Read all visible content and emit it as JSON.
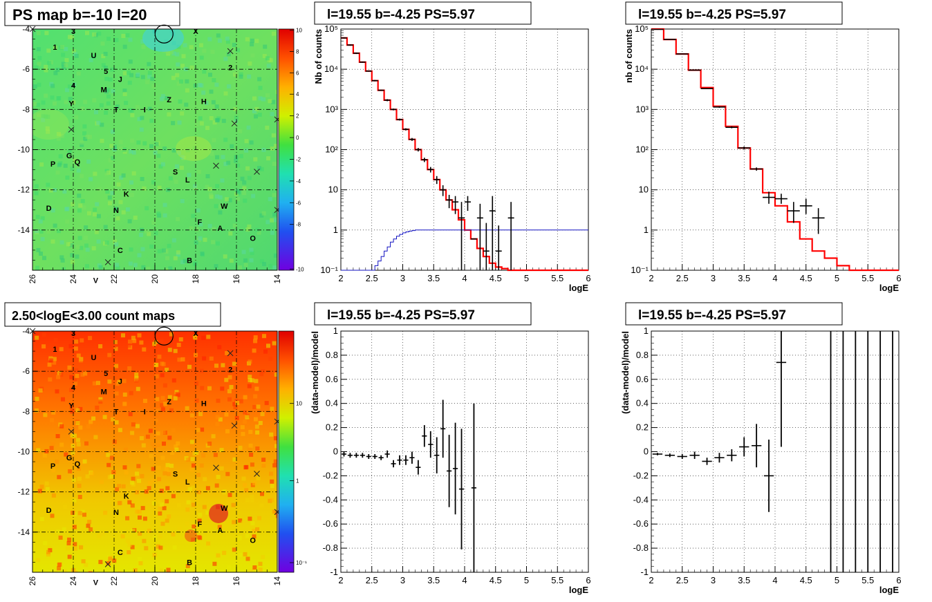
{
  "panels": {
    "ps_map": {
      "title": "PS map b=-10 l=20",
      "x_ticks": [
        "26",
        "24",
        "22",
        "20",
        "18",
        "16",
        "14"
      ],
      "y_ticks": [
        "-4",
        "-6",
        "-8",
        "-10",
        "-12",
        "-14"
      ],
      "colorbar_ticks": [
        "10",
        "8",
        "6",
        "4",
        "2",
        "0",
        "-2",
        "-4",
        "-6",
        "-8",
        "-10"
      ],
      "colors": {
        "high": "#f02000",
        "mid": "#44e040",
        "low": "#7000e0",
        "bg": "#5fe070"
      }
    },
    "count_map": {
      "title": "2.50<logE<3.00 count maps",
      "x_ticks": [
        "26",
        "24",
        "22",
        "20",
        "18",
        "16",
        "14"
      ],
      "y_ticks": [
        "-4",
        "-6",
        "-8",
        "-10",
        "-12",
        "-14"
      ],
      "colorbar_ticks": [
        "10",
        "1",
        "10⁻¹"
      ],
      "colors": {
        "top": "#ff2a00",
        "bottom": "#e8e800"
      }
    },
    "spectrum_left": {
      "title": "l=19.55 b=-4.25 PS=5.97",
      "xlabel": "logE",
      "ylabel": "Nb of counts",
      "x_ticks": [
        "2",
        "2.5",
        "3",
        "3.5",
        "4",
        "4.5",
        "5",
        "5.5",
        "6"
      ],
      "y_ticks": [
        "10⁻¹",
        "1",
        "10",
        "10²",
        "10³",
        "10⁴",
        "10⁵"
      ]
    },
    "spectrum_right": {
      "title": "l=19.55 b=-4.25 PS=5.97",
      "xlabel": "logE",
      "ylabel": "nb of counts",
      "x_ticks": [
        "2",
        "2.5",
        "3",
        "3.5",
        "4",
        "4.5",
        "5",
        "5.5",
        "6"
      ],
      "y_ticks": [
        "10⁻¹",
        "1",
        "10",
        "10²",
        "10³",
        "10⁴",
        "10⁵"
      ]
    },
    "residual_left": {
      "title": "l=19.55 b=-4.25 PS=5.97",
      "xlabel": "logE",
      "ylabel": "(data-model)/model",
      "x_ticks": [
        "2",
        "2.5",
        "3",
        "3.5",
        "4",
        "4.5",
        "5",
        "5.5",
        "6"
      ],
      "y_ticks": [
        "-1",
        "-0.8",
        "-0.6",
        "-0.4",
        "-0.2",
        "0",
        "0.2",
        "0.4",
        "0.6",
        "0.8",
        "1"
      ]
    },
    "residual_right": {
      "title": "l=19.55 b=-4.25 PS=5.97",
      "xlabel": "logE",
      "ylabel": "(data-model)/model",
      "x_ticks": [
        "2",
        "2.5",
        "3",
        "3.5",
        "4",
        "4.5",
        "5",
        "5.5",
        "6"
      ],
      "y_ticks": [
        "-1",
        "-0.8",
        "-0.6",
        "-0.4",
        "-0.2",
        "0",
        "0.2",
        "0.4",
        "0.6",
        "0.8",
        "1"
      ]
    }
  },
  "map_labels": [
    {
      "text": "1",
      "l": 24.9,
      "b": -4.9
    },
    {
      "text": "3",
      "l": 24.0,
      "b": -4.1
    },
    {
      "text": "U",
      "l": 23.0,
      "b": -5.3
    },
    {
      "text": "X",
      "l": 18.0,
      "b": -4.1
    },
    {
      "text": "2",
      "l": 16.3,
      "b": -5.9
    },
    {
      "text": "5",
      "l": 22.4,
      "b": -6.1
    },
    {
      "text": "J",
      "l": 21.7,
      "b": -6.5
    },
    {
      "text": "4",
      "l": 24.0,
      "b": -6.8
    },
    {
      "text": "M",
      "l": 22.5,
      "b": -7.0
    },
    {
      "text": "Z",
      "l": 19.3,
      "b": -7.5
    },
    {
      "text": "H",
      "l": 17.6,
      "b": -7.6
    },
    {
      "text": "Y",
      "l": 24.1,
      "b": -7.7
    },
    {
      "text": "T",
      "l": 21.9,
      "b": -8.0
    },
    {
      "text": "I",
      "l": 20.5,
      "b": -8.0
    },
    {
      "text": "G",
      "l": 24.2,
      "b": -10.3
    },
    {
      "text": "P",
      "l": 25.0,
      "b": -10.7
    },
    {
      "text": "Q",
      "l": 23.8,
      "b": -10.6
    },
    {
      "text": "S",
      "l": 19.0,
      "b": -11.1
    },
    {
      "text": "L",
      "l": 18.4,
      "b": -11.5
    },
    {
      "text": "K",
      "l": 21.4,
      "b": -12.2
    },
    {
      "text": "W",
      "l": 16.6,
      "b": -12.8
    },
    {
      "text": "D",
      "l": 25.2,
      "b": -12.9
    },
    {
      "text": "N",
      "l": 21.9,
      "b": -13.0
    },
    {
      "text": "F",
      "l": 17.8,
      "b": -13.6
    },
    {
      "text": "A",
      "l": 16.8,
      "b": -13.9
    },
    {
      "text": "O",
      "l": 15.2,
      "b": -14.4
    },
    {
      "text": "C",
      "l": 21.7,
      "b": -15.0
    },
    {
      "text": "B",
      "l": 18.3,
      "b": -15.5
    },
    {
      "text": "V",
      "l": 22.9,
      "b": -16.5
    }
  ],
  "map_crosses": [
    {
      "l": 26.0,
      "b": -4.0
    },
    {
      "l": 16.3,
      "b": -5.1
    },
    {
      "l": 16.1,
      "b": -8.7
    },
    {
      "l": 24.1,
      "b": -9.0
    },
    {
      "l": 17.0,
      "b": -10.8
    },
    {
      "l": 15.0,
      "b": -11.1
    },
    {
      "l": 14.0,
      "b": -8.5
    },
    {
      "l": 14.0,
      "b": -13.0
    },
    {
      "l": 22.3,
      "b": -15.6
    }
  ],
  "map_circle": {
    "l": 19.55,
    "b": -4.25
  },
  "chart_data": [
    {
      "type": "map",
      "title": "PS map b=-10 l=20",
      "xlim": [
        26,
        14
      ],
      "ylim": [
        -16,
        -4
      ],
      "colorbar_range": [
        -10,
        10
      ]
    },
    {
      "type": "map",
      "title": "2.50<logE<3.00 count maps",
      "xlim": [
        26,
        14
      ],
      "ylim": [
        -16,
        -4
      ],
      "colorbar_scale": "log",
      "colorbar_range": [
        0.1,
        10
      ]
    },
    {
      "type": "line",
      "title": "l=19.55 b=-4.25 PS=5.97",
      "xlabel": "logE",
      "ylabel": "Nb of counts",
      "xlim": [
        2,
        6
      ],
      "ylim": [
        0.1,
        100000
      ],
      "yscale": "log",
      "grid": true,
      "series": [
        {
          "kind": "step",
          "color": "#ff0000",
          "x": [
            2.0,
            2.1,
            2.2,
            2.3,
            2.4,
            2.5,
            2.6,
            2.7,
            2.8,
            2.9,
            3.0,
            3.1,
            3.2,
            3.3,
            3.4,
            3.5,
            3.6,
            3.7,
            3.8,
            3.9,
            4.0,
            4.1,
            4.2,
            4.3,
            4.4,
            4.5,
            4.6,
            4.7,
            4.8,
            6.0
          ],
          "y": [
            60000,
            40000,
            25000,
            15000,
            9000,
            5200,
            3000,
            1700,
            1000,
            560,
            320,
            180,
            100,
            56,
            32,
            18,
            10,
            5.6,
            3.2,
            1.8,
            1.0,
            0.6,
            0.35,
            0.22,
            0.15,
            0.12,
            0.11,
            0.1,
            0.1,
            0.1
          ]
        },
        {
          "kind": "step",
          "color": "#1010c0",
          "x": [
            2.0,
            2.5,
            2.55,
            2.6,
            2.65,
            2.7,
            2.75,
            2.8,
            2.85,
            2.9,
            2.95,
            3.0,
            3.05,
            3.1,
            3.15,
            3.2,
            3.3,
            3.4,
            3.5,
            6.0
          ],
          "y": [
            0.1,
            0.1,
            0.13,
            0.17,
            0.22,
            0.3,
            0.38,
            0.5,
            0.6,
            0.7,
            0.78,
            0.85,
            0.9,
            0.94,
            0.97,
            1.0,
            1.0,
            1.0,
            1.0,
            1.0
          ]
        },
        {
          "kind": "points",
          "color": "#000000",
          "x": [
            2.05,
            2.15,
            2.25,
            2.35,
            2.45,
            2.55,
            2.65,
            2.75,
            2.85,
            2.95,
            3.05,
            3.15,
            3.25,
            3.35,
            3.45,
            3.55,
            3.65,
            3.75,
            3.85,
            3.95,
            4.05,
            4.15,
            4.25,
            4.35,
            4.45,
            4.55,
            4.75
          ],
          "y": [
            60000,
            40000,
            25000,
            15000,
            9000,
            5200,
            3000,
            1700,
            1000,
            560,
            320,
            180,
            100,
            56,
            32,
            18,
            10,
            5.6,
            3.2,
            1.8,
            1.0,
            0.6,
            0.35,
            0.22,
            0.15,
            0.12,
            0.11
          ],
          "ylo": [
            58000,
            38500,
            24000,
            14500,
            8700,
            5000,
            2900,
            1600,
            950,
            530,
            300,
            165,
            90,
            49,
            27,
            14,
            7,
            3.5,
            2.5,
            0.1,
            3,
            0.1,
            0.1,
            0.1,
            0.1,
            0.1,
            0.1
          ],
          "yhi": [
            62000,
            41500,
            26000,
            15500,
            9300,
            5400,
            3100,
            1800,
            1050,
            590,
            340,
            195,
            110,
            63,
            37,
            22,
            13,
            7.5,
            7.0,
            5,
            7,
            0.1,
            4.5,
            1.5,
            7,
            1.3,
            5
          ],
          "obs": [
            60000,
            40000,
            25000,
            15000,
            9000,
            5200,
            3000,
            1700,
            1000,
            560,
            320,
            180,
            100,
            56,
            32,
            18,
            10,
            5.6,
            5,
            2,
            5,
            null,
            2,
            0.3,
            3,
            0.3,
            2
          ]
        }
      ]
    },
    {
      "type": "line",
      "title": "l=19.55 b=-4.25 PS=5.97",
      "xlabel": "logE",
      "ylabel": "nb of counts",
      "xlim": [
        2,
        6
      ],
      "ylim": [
        0.1,
        100000
      ],
      "yscale": "log",
      "grid": true,
      "series": [
        {
          "kind": "step",
          "color": "#ff0000",
          "x": [
            2.0,
            2.2,
            2.4,
            2.6,
            2.8,
            3.0,
            3.2,
            3.4,
            3.6,
            3.8,
            4.0,
            4.2,
            4.4,
            4.6,
            4.8,
            5.0,
            5.2,
            6.0
          ],
          "y": [
            100000,
            55000,
            24000,
            9500,
            3500,
            1200,
            380,
            110,
            33,
            8.5,
            4.0,
            1.6,
            0.6,
            0.3,
            0.2,
            0.13,
            0.1,
            0.1
          ]
        },
        {
          "kind": "points",
          "color": "#000000",
          "x": [
            2.1,
            2.3,
            2.5,
            2.7,
            2.9,
            3.1,
            3.3,
            3.5,
            3.7,
            3.9,
            4.1,
            4.3,
            4.5,
            4.7
          ],
          "y": [
            98000,
            55000,
            24000,
            9500,
            3300,
            1150,
            360,
            110,
            33,
            6.5,
            6.0,
            3.0,
            4.0,
            2.0
          ],
          "ylo": [
            96000,
            54000,
            23500,
            9300,
            3200,
            1100,
            340,
            100,
            30,
            4.5,
            4.5,
            1.5,
            2.5,
            0.8
          ],
          "yhi": [
            100000,
            56000,
            24500,
            9700,
            3400,
            1200,
            380,
            120,
            36,
            9,
            8,
            5,
            6,
            3.5
          ]
        }
      ]
    },
    {
      "type": "scatter",
      "title": "l=19.55 b=-4.25 PS=5.97",
      "xlabel": "logE",
      "ylabel": "(data-model)/model",
      "xlim": [
        2,
        6
      ],
      "ylim": [
        -1,
        1
      ],
      "grid": true,
      "series": [
        {
          "kind": "errorbars",
          "color": "#000000",
          "x": [
            2.05,
            2.15,
            2.25,
            2.35,
            2.45,
            2.55,
            2.65,
            2.75,
            2.85,
            2.95,
            3.05,
            3.15,
            3.25,
            3.35,
            3.45,
            3.55,
            3.65,
            3.75,
            3.85,
            3.95,
            4.15
          ],
          "y": [
            -0.02,
            -0.03,
            -0.03,
            -0.03,
            -0.04,
            -0.04,
            -0.05,
            -0.02,
            -0.1,
            -0.07,
            -0.07,
            -0.05,
            -0.13,
            0.13,
            0.06,
            -0.03,
            0.19,
            -0.16,
            -0.14,
            -0.31,
            -0.3
          ],
          "yerr": [
            0.02,
            0.02,
            0.02,
            0.02,
            0.02,
            0.02,
            0.02,
            0.03,
            0.03,
            0.04,
            0.04,
            0.05,
            0.06,
            0.09,
            0.11,
            0.15,
            0.24,
            0.3,
            0.38,
            0.5,
            0.7
          ]
        }
      ]
    },
    {
      "type": "scatter",
      "title": "l=19.55 b=-4.25 PS=5.97",
      "xlabel": "logE",
      "ylabel": "(data-model)/model",
      "xlim": [
        2,
        6
      ],
      "ylim": [
        -1,
        1
      ],
      "grid": true,
      "series": [
        {
          "kind": "errorbars",
          "color": "#000000",
          "x": [
            2.1,
            2.3,
            2.5,
            2.7,
            2.9,
            3.1,
            3.3,
            3.5,
            3.7,
            3.9,
            4.1,
            4.9,
            5.1,
            5.3,
            5.5,
            5.7,
            5.9
          ],
          "y": [
            -0.02,
            -0.03,
            -0.04,
            -0.03,
            -0.08,
            -0.05,
            -0.03,
            0.04,
            0.05,
            -0.2,
            0.74,
            0,
            0,
            0,
            0,
            0,
            0
          ],
          "yerr": [
            0.01,
            0.015,
            0.02,
            0.03,
            0.03,
            0.04,
            0.05,
            0.08,
            0.18,
            0.3,
            0.7,
            10,
            10,
            10,
            10,
            10,
            10
          ]
        }
      ]
    }
  ]
}
